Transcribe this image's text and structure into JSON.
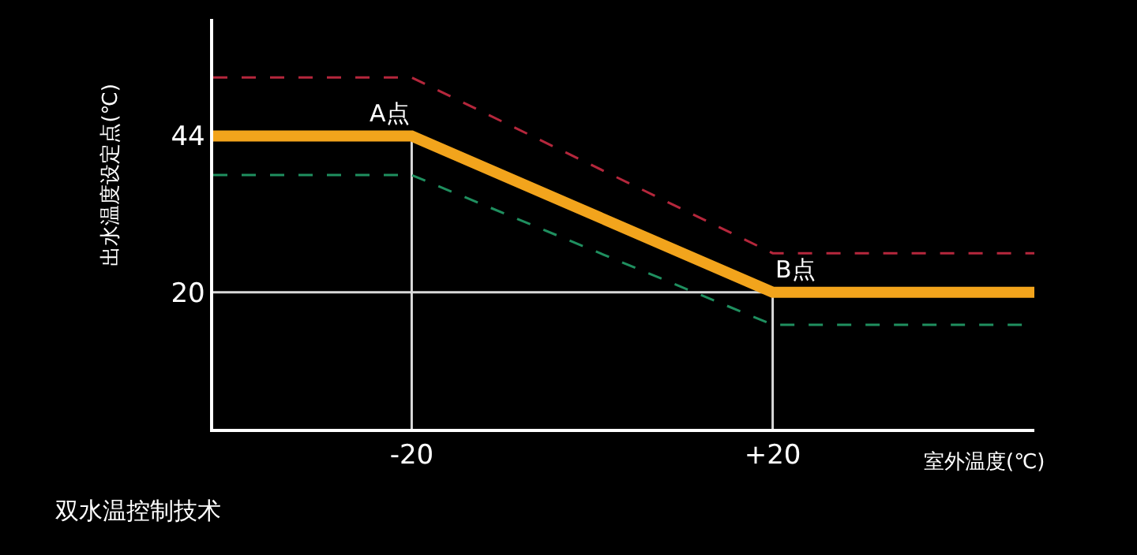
{
  "chart_data": {
    "type": "line",
    "xlabel": "室外温度(℃)",
    "ylabel": "出水温度设定点(℃)",
    "x": [
      -42,
      -20,
      20,
      49
    ],
    "series": [
      {
        "color": "#b5273c",
        "values": [
          53,
          53,
          26,
          26
        ],
        "line_style": "dashed"
      },
      {
        "color": "#1f8f5f",
        "values": [
          38,
          38,
          15,
          15
        ],
        "line_style": "dashed"
      },
      {
        "color": "#f2a41c",
        "values": [
          44,
          44,
          20,
          20
        ],
        "line_style": "solid"
      }
    ],
    "xlim": [
      -42,
      49
    ],
    "ylim": [
      -1,
      62
    ],
    "xticks": [
      -20,
      {
        "value": 20,
        "label": "+20"
      }
    ],
    "yticks": [
      20,
      44
    ],
    "ref_lines": [
      {
        "axis": "y",
        "value": 20,
        "color": "#d9d9d9"
      },
      {
        "axis": "x",
        "value": -20,
        "color": "#d9d9d9"
      },
      {
        "axis": "x",
        "value": 20,
        "color": "#d9d9d9"
      }
    ],
    "annotations": [
      {
        "text": "A点",
        "x": -20,
        "y": 44
      },
      {
        "text": "B点",
        "x": 20,
        "y": 20
      },
      "双水温控制技术"
    ],
    "grid": false,
    "marker": "none"
  }
}
